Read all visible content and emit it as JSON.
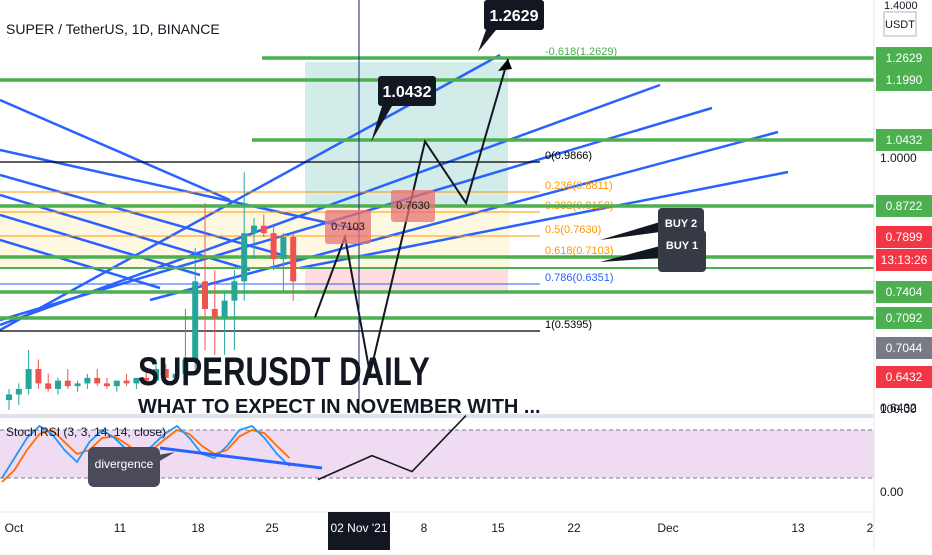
{
  "header": {
    "symbol": "SUPER / TetherUS, 1D, BINANCE",
    "currency": "USDT",
    "top_price": "1.4000"
  },
  "axis": {
    "price_ticks": [
      "1.0000",
      "0.6432",
      "100.00",
      "0.00"
    ],
    "date_labels": [
      "Oct",
      "11",
      "18",
      "25",
      "02 Nov '21",
      "8",
      "15",
      "22",
      "Dec",
      "13",
      "2"
    ]
  },
  "price_badges": [
    {
      "text": "1.2629",
      "color": "#4caf50"
    },
    {
      "text": "1.1990",
      "color": "#4caf50"
    },
    {
      "text": "1.0432",
      "color": "#4caf50"
    },
    {
      "text": "0.8722",
      "color": "#4caf50"
    },
    {
      "text": "0.7899",
      "color": "#f23645"
    },
    {
      "text": "13:13:26",
      "color": "#f23645"
    },
    {
      "text": "0.7404",
      "color": "#4caf50"
    },
    {
      "text": "0.7092",
      "color": "#4caf50"
    },
    {
      "text": "0.7044",
      "color": "#787b86"
    },
    {
      "text": "0.6432",
      "color": "#f23645"
    }
  ],
  "fib_levels": [
    {
      "label": "-0.618(1.2629)",
      "color": "#4caf50"
    },
    {
      "label": "0(0.9866)",
      "color": "#000000"
    },
    {
      "label": "0.236(0.8811)",
      "color": "#ff9800"
    },
    {
      "label": "0.382(0.8158)",
      "color": "#ff9800"
    },
    {
      "label": "0.5(0.7630)",
      "color": "#ff9800"
    },
    {
      "label": "0.618(0.7103)",
      "color": "#ff9800"
    },
    {
      "label": "0.786(0.6351)",
      "color": "#2962ff"
    },
    {
      "label": "1(0.5395)",
      "color": "#000000"
    }
  ],
  "callouts": {
    "target_high": "1.2629",
    "target_mid": "1.0432",
    "box_left": "0.7103",
    "box_right": "0.7630",
    "buy2": "BUY 2",
    "buy1": "BUY 1",
    "divergence": "divergence"
  },
  "title": "SUPERUSDT DAILY",
  "subtitle_clipped": "WHAT TO EXPECT IN NOVEMBER WITH ...",
  "indicator": {
    "name": "Stoch RSI (3, 3, 14, 14, close)"
  },
  "colors": {
    "green": "#4caf50",
    "blue": "#2962ff",
    "orange": "#ff9800",
    "up_candle": "#26a69a",
    "down_candle": "#ef5350",
    "stoch_k": "#2196f3",
    "stoch_d": "#ff6d00",
    "stoch_band": "#e1bee7"
  },
  "chart_data": {
    "type": "candlestick",
    "title": "SUPERUSDT DAILY",
    "x_labels": [
      "Oct",
      "11",
      "18",
      "25",
      "02 Nov '21",
      "8",
      "15",
      "22",
      "Dec",
      "13"
    ],
    "candles": [
      {
        "o": 0.56,
        "h": 0.6,
        "l": 0.54,
        "c": 0.58
      },
      {
        "o": 0.58,
        "h": 0.62,
        "l": 0.55,
        "c": 0.6
      },
      {
        "o": 0.6,
        "h": 0.7,
        "l": 0.58,
        "c": 0.66
      },
      {
        "o": 0.66,
        "h": 0.68,
        "l": 0.6,
        "c": 0.62
      },
      {
        "o": 0.62,
        "h": 0.65,
        "l": 0.59,
        "c": 0.6
      },
      {
        "o": 0.6,
        "h": 0.64,
        "l": 0.58,
        "c": 0.63
      },
      {
        "o": 0.63,
        "h": 0.66,
        "l": 0.6,
        "c": 0.61
      },
      {
        "o": 0.61,
        "h": 0.63,
        "l": 0.59,
        "c": 0.62
      },
      {
        "o": 0.62,
        "h": 0.65,
        "l": 0.6,
        "c": 0.64
      },
      {
        "o": 0.64,
        "h": 0.66,
        "l": 0.61,
        "c": 0.62
      },
      {
        "o": 0.62,
        "h": 0.64,
        "l": 0.6,
        "c": 0.61
      },
      {
        "o": 0.61,
        "h": 0.63,
        "l": 0.59,
        "c": 0.63
      },
      {
        "o": 0.63,
        "h": 0.65,
        "l": 0.61,
        "c": 0.62
      },
      {
        "o": 0.62,
        "h": 0.64,
        "l": 0.6,
        "c": 0.64
      },
      {
        "o": 0.64,
        "h": 0.66,
        "l": 0.62,
        "c": 0.63
      },
      {
        "o": 0.63,
        "h": 0.68,
        "l": 0.62,
        "c": 0.66
      },
      {
        "o": 0.66,
        "h": 0.67,
        "l": 0.63,
        "c": 0.64
      },
      {
        "o": 0.64,
        "h": 0.66,
        "l": 0.62,
        "c": 0.65
      },
      {
        "o": 0.65,
        "h": 0.72,
        "l": 0.64,
        "c": 0.68
      },
      {
        "o": 0.68,
        "h": 0.78,
        "l": 0.66,
        "c": 0.75
      },
      {
        "o": 0.75,
        "h": 0.88,
        "l": 0.7,
        "c": 0.72
      },
      {
        "o": 0.72,
        "h": 0.76,
        "l": 0.69,
        "c": 0.71
      },
      {
        "o": 0.71,
        "h": 0.74,
        "l": 0.69,
        "c": 0.73
      },
      {
        "o": 0.73,
        "h": 0.76,
        "l": 0.7,
        "c": 0.75
      },
      {
        "o": 0.75,
        "h": 0.96,
        "l": 0.73,
        "c": 0.8
      },
      {
        "o": 0.8,
        "h": 0.84,
        "l": 0.77,
        "c": 0.82
      },
      {
        "o": 0.82,
        "h": 0.85,
        "l": 0.79,
        "c": 0.8
      },
      {
        "o": 0.8,
        "h": 0.82,
        "l": 0.76,
        "c": 0.77
      },
      {
        "o": 0.77,
        "h": 0.8,
        "l": 0.74,
        "c": 0.79
      },
      {
        "o": 0.79,
        "h": 0.8,
        "l": 0.73,
        "c": 0.75
      }
    ],
    "projection_path": [
      0.71,
      0.79,
      0.65,
      1.04,
      0.88,
      1.26
    ],
    "stoch_rsi": {
      "k": [
        20,
        45,
        70,
        85,
        75,
        55,
        40,
        65,
        80,
        70,
        55,
        45,
        60,
        75,
        85,
        70,
        50,
        45,
        60,
        80,
        85,
        70,
        50,
        35
      ],
      "d": [
        15,
        30,
        55,
        75,
        80,
        65,
        50,
        55,
        70,
        72,
        62,
        50,
        55,
        68,
        80,
        75,
        60,
        50,
        55,
        72,
        80,
        76,
        60,
        45
      ],
      "bands": [
        80,
        20
      ],
      "projection": [
        18,
        48,
        28,
        98
      ]
    }
  }
}
